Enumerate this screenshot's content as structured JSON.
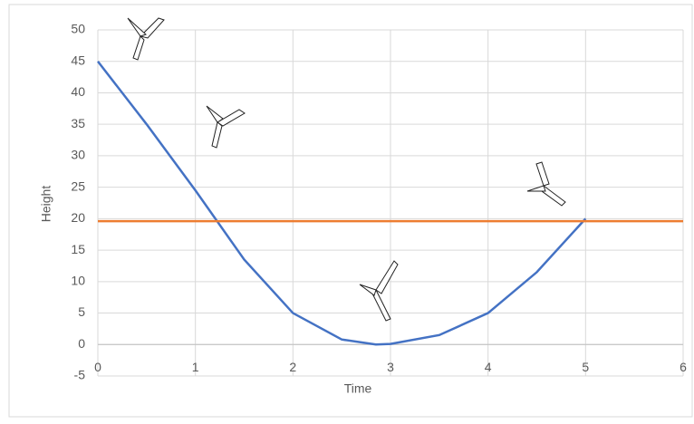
{
  "chart_data": {
    "type": "line",
    "xlabel": "Time",
    "ylabel": "Height",
    "xlim": [
      0,
      6
    ],
    "xticks": [
      0,
      1,
      2,
      3,
      4,
      5,
      6
    ],
    "ylim": [
      -5,
      50
    ],
    "yticks": [
      -5,
      0,
      5,
      10,
      15,
      20,
      25,
      30,
      35,
      40,
      45,
      50
    ],
    "grid": true,
    "series": [
      {
        "color": "#4472c4",
        "x": [
          0,
          0.5,
          1,
          1.5,
          2,
          2.5,
          2.85,
          3,
          3.5,
          4,
          4.5,
          5
        ],
        "values": [
          45,
          35,
          24.5,
          13.5,
          5,
          0.8,
          0,
          0.1,
          1.5,
          5,
          11.5,
          20
        ]
      },
      {
        "color": "#ed7d31",
        "x": [
          0,
          6
        ],
        "values": [
          19.6,
          19.6
        ]
      }
    ]
  }
}
